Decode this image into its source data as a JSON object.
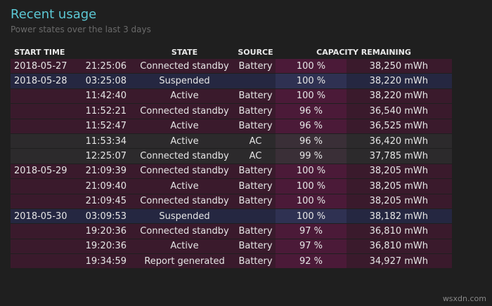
{
  "header": {
    "title": "Recent usage",
    "subtitle": "Power states over the last 3 days"
  },
  "table": {
    "columns": [
      "START TIME",
      "STATE",
      "SOURCE",
      "CAPACITY REMAINING"
    ],
    "rows": [
      [
        "2018-05-27",
        "21:25:06",
        "Connected standby",
        "Battery",
        "100 %",
        "38,250 mWh"
      ],
      [
        "2018-05-28",
        "03:25:08",
        "Suspended",
        null,
        "100 %",
        "38,220 mWh"
      ],
      [
        null,
        "11:42:40",
        "Active",
        "Battery",
        "100 %",
        "38,220 mWh"
      ],
      [
        null,
        "11:52:21",
        "Connected standby",
        "Battery",
        "96 %",
        "36,540 mWh"
      ],
      [
        null,
        "11:52:47",
        "Active",
        "Battery",
        "96 %",
        "36,525 mWh"
      ],
      [
        null,
        "11:53:34",
        "Active",
        "AC",
        "96 %",
        "36,420 mWh"
      ],
      [
        null,
        "12:25:07",
        "Connected standby",
        "AC",
        "99 %",
        "37,785 mWh"
      ],
      [
        "2018-05-29",
        "21:09:39",
        "Connected standby",
        "Battery",
        "100 %",
        "38,205 mWh"
      ],
      [
        null,
        "21:09:40",
        "Active",
        "Battery",
        "100 %",
        "38,205 mWh"
      ],
      [
        null,
        "21:09:45",
        "Connected standby",
        "Battery",
        "100 %",
        "38,205 mWh"
      ],
      [
        "2018-05-30",
        "03:09:53",
        "Suspended",
        null,
        "100 %",
        "38,182 mWh"
      ],
      [
        null,
        "19:20:36",
        "Connected standby",
        "Battery",
        "97 %",
        "36,810 mWh"
      ],
      [
        null,
        "19:20:36",
        "Active",
        "Battery",
        "97 %",
        "36,810 mWh"
      ],
      [
        null,
        "19:34:59",
        "Report generated",
        "Battery",
        "92 %",
        "34,927 mWh"
      ]
    ]
  },
  "watermark": "wsxdn.com"
}
